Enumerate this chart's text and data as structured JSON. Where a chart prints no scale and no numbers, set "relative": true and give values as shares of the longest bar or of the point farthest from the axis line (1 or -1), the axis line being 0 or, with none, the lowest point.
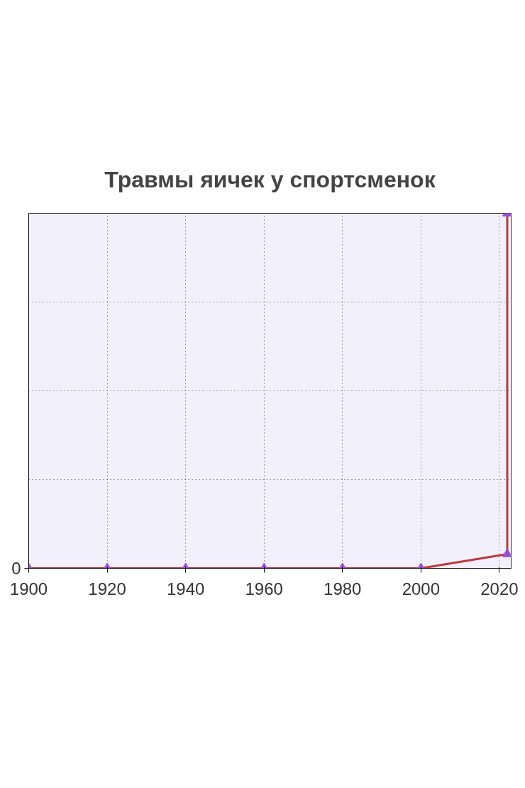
{
  "chart_data": {
    "type": "line",
    "title": "Травмы яичек у спортсменок",
    "relative": true,
    "x": [
      1900,
      1920,
      1940,
      1960,
      1980,
      2000,
      2022,
      2022
    ],
    "series": [
      {
        "color": "#c0393b",
        "values": [
          0,
          0,
          0,
          0,
          0,
          0,
          0.04,
          1
        ]
      }
    ],
    "xlim": [
      1900,
      2023
    ],
    "xticks": [
      1900,
      1920,
      1940,
      1960,
      1980,
      2000,
      2020
    ],
    "annotations": [
      "0"
    ],
    "grid": true,
    "marker": "triangle",
    "line_style": "solid"
  }
}
